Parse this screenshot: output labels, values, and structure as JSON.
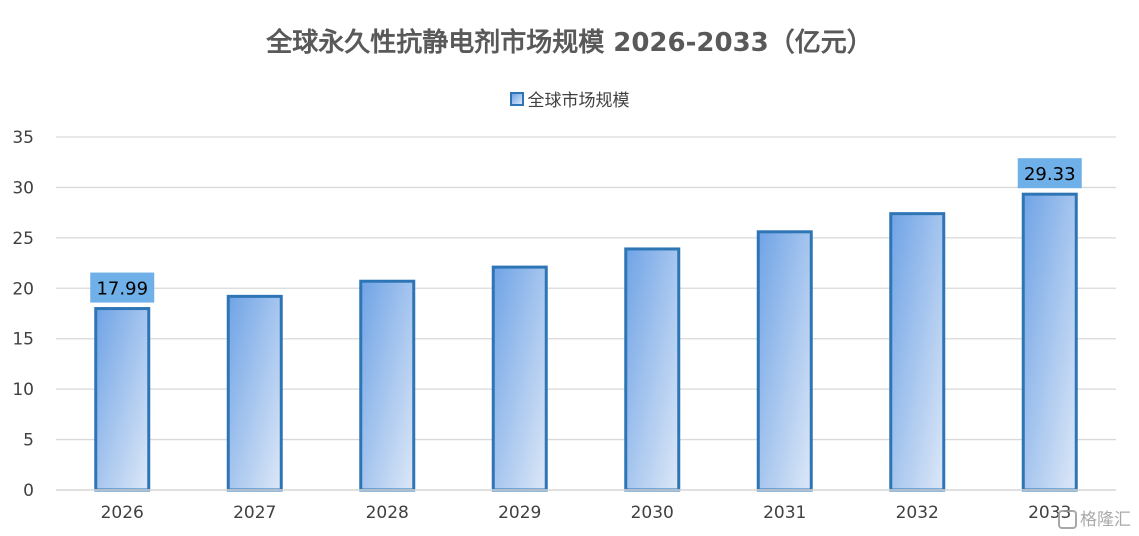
{
  "chart_data": {
    "type": "bar",
    "title": "全球永久性抗静电剂市场规模 2026-2033（亿元）",
    "categories": [
      "2026",
      "2027",
      "2028",
      "2029",
      "2030",
      "2031",
      "2032",
      "2033"
    ],
    "series": [
      {
        "name": "全球市场规模",
        "values": [
          17.99,
          19.2,
          20.7,
          22.1,
          23.9,
          25.6,
          27.4,
          29.33
        ]
      }
    ],
    "data_labels": [
      {
        "category": "2026",
        "text": "17.99"
      },
      {
        "category": "2033",
        "text": "29.33"
      }
    ],
    "y_ticks": [
      "0",
      "5",
      "10",
      "15",
      "20",
      "25",
      "30",
      "35"
    ],
    "ylim": [
      0,
      35
    ],
    "xlabel": "",
    "ylabel": "",
    "grid": true,
    "legend_position": "top",
    "colors": {
      "bar_outline": "#2e75b6",
      "bar_fill_start": "#6fa3e6",
      "bar_fill_end": "#dde8f7",
      "label_box": "#6fb0e8",
      "gridline": "#d9d9d9"
    }
  },
  "watermark": {
    "text": "格隆汇",
    "icon": "gelonghui-logo-icon"
  }
}
